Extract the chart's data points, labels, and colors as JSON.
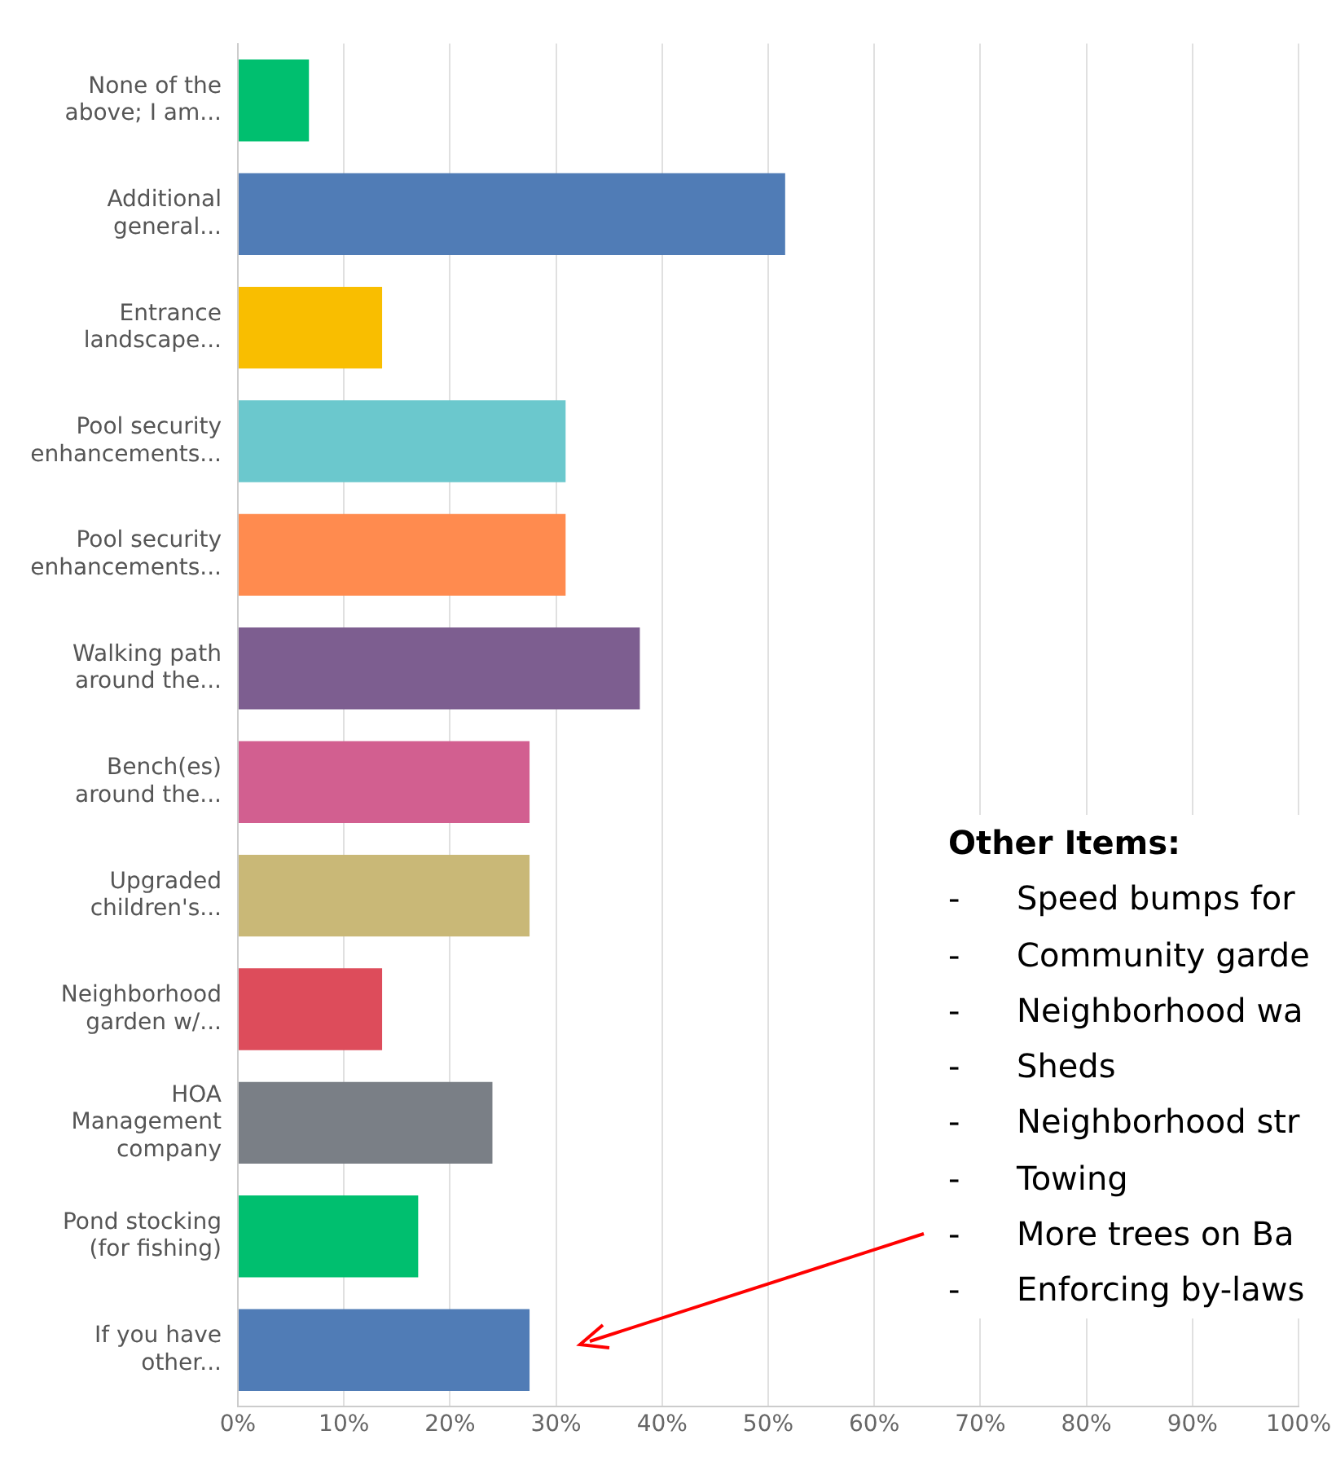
{
  "chart_data": {
    "type": "bar",
    "orientation": "horizontal",
    "categories": [
      "None of the above; I am...",
      "Additional general...",
      "Entrance landscape...",
      "Pool security enhancements...",
      "Pool security enhancements...",
      "Walking path around the...",
      "Bench(es) around the...",
      "Upgraded children's...",
      "Neighborhood garden w/...",
      "HOA Management company",
      "Pond stocking (for fishing)",
      "If you have other..."
    ],
    "values": [
      6.7,
      51.6,
      13.6,
      30.9,
      30.9,
      37.9,
      27.5,
      27.5,
      13.6,
      24,
      17,
      27.5
    ],
    "colors": [
      "#00bf6f",
      "#507cb6",
      "#f9be00",
      "#6bc8cd",
      "#ff8b4f",
      "#7d5e90",
      "#d25f90",
      "#c9b877",
      "#dd4c5b",
      "#7a7f86",
      "#00bf6f",
      "#507cb6"
    ],
    "xlim": [
      0,
      100
    ],
    "xticks": [
      {
        "value": 0,
        "label": "0%"
      },
      {
        "value": 10,
        "label": "10%"
      },
      {
        "value": 20,
        "label": "20%"
      },
      {
        "value": 30,
        "label": "30%"
      },
      {
        "value": 40,
        "label": "40%"
      },
      {
        "value": 50,
        "label": "50%"
      },
      {
        "value": 60,
        "label": "60%"
      },
      {
        "value": 70,
        "label": "70%"
      },
      {
        "value": 80,
        "label": "80%"
      },
      {
        "value": 90,
        "label": "90%"
      },
      {
        "value": 100,
        "label": "100%"
      }
    ],
    "grid": "x",
    "legend": false,
    "annotations": [
      "Other Items:",
      "-\tSpeed bumps for",
      "-\tCommunity garde",
      "-\tNeighborhood wa",
      "-\tSheds",
      "-\tNeighborhood str",
      "-\tTowing",
      "-\tMore trees on Ba",
      "-\tEnforcing by-laws"
    ]
  }
}
